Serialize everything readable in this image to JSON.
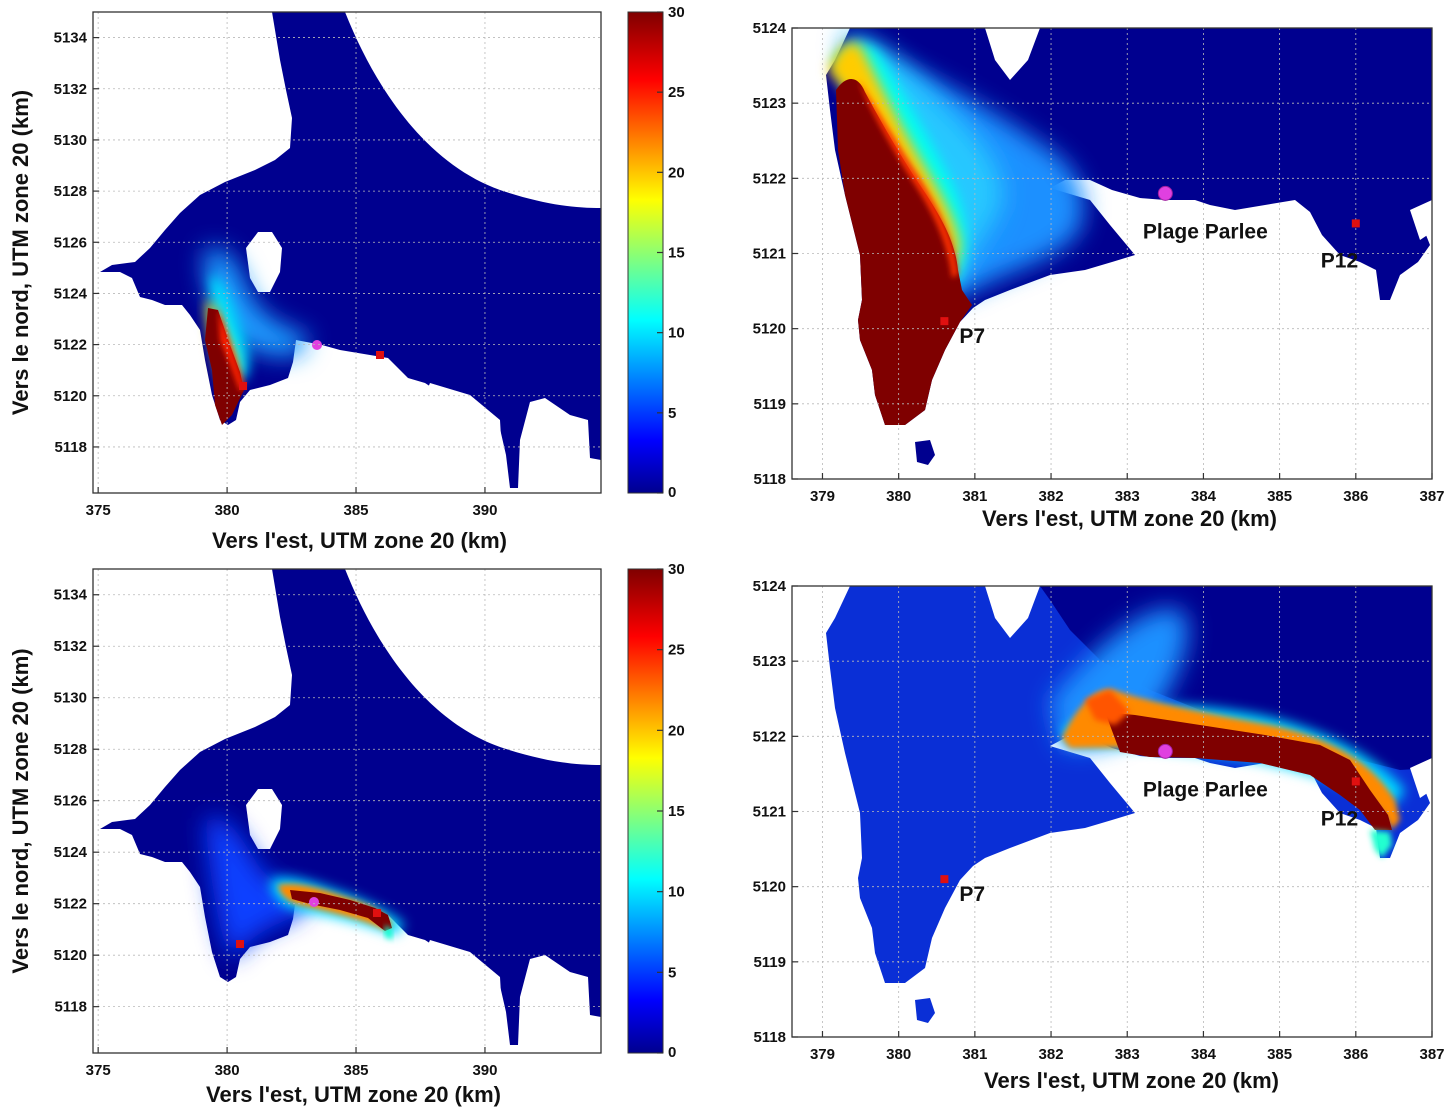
{
  "panels": [
    {
      "id": "top-left",
      "xlabel": "Vers l'est, UTM zone 20 (km)",
      "ylabel": "Vers le nord, UTM zone 20 (km)",
      "xticks": [
        "375",
        "380",
        "385",
        "390"
      ],
      "yticks": [
        "5118",
        "5120",
        "5122",
        "5124",
        "5126",
        "5128",
        "5130",
        "5132",
        "5134"
      ],
      "xlim": [
        374.8,
        394.5
      ],
      "ylim": [
        5116.2,
        5135.0
      ],
      "plume": "west"
    },
    {
      "id": "top-right",
      "xlabel": "Vers l'est, UTM zone 20 (km)",
      "xticks": [
        "379",
        "380",
        "381",
        "382",
        "383",
        "384",
        "385",
        "386",
        "387"
      ],
      "yticks": [
        "5118",
        "5119",
        "5120",
        "5121",
        "5122",
        "5123",
        "5124"
      ],
      "xlim": [
        378.6,
        387.0
      ],
      "ylim": [
        5118.0,
        5124.0
      ],
      "plume": "west",
      "places": [
        {
          "label": "Plage Parlee",
          "x": 383.5,
          "y": 5121.8,
          "kind": "marker-circle"
        },
        {
          "label": "P7",
          "x": 380.6,
          "y": 5120.1,
          "kind": "marker-square"
        },
        {
          "label": "P12",
          "x": 386.0,
          "y": 5121.4,
          "kind": "marker-square"
        }
      ]
    },
    {
      "id": "bottom-left",
      "xlabel": "Vers l'est, UTM zone 20 (km)",
      "ylabel": "Vers le nord, UTM zone 20 (km)",
      "xticks": [
        "375",
        "380",
        "385",
        "390"
      ],
      "yticks": [
        "5118",
        "5120",
        "5122",
        "5124",
        "5126",
        "5128",
        "5130",
        "5132",
        "5134"
      ],
      "xlim": [
        374.8,
        394.5
      ],
      "ylim": [
        5116.2,
        5135.0
      ],
      "plume": "east"
    },
    {
      "id": "bottom-right",
      "xlabel": "Vers l'est, UTM zone 20 (km)",
      "xticks": [
        "379",
        "380",
        "381",
        "382",
        "383",
        "384",
        "385",
        "386",
        "387"
      ],
      "yticks": [
        "5118",
        "5119",
        "5120",
        "5121",
        "5122",
        "5123",
        "5124"
      ],
      "xlim": [
        378.6,
        387.0
      ],
      "ylim": [
        5118.0,
        5124.0
      ],
      "plume": "east",
      "places": [
        {
          "label": "Plage Parlee",
          "x": 383.5,
          "y": 5121.8,
          "kind": "marker-circle"
        },
        {
          "label": "P7",
          "x": 380.6,
          "y": 5120.1,
          "kind": "marker-square"
        },
        {
          "label": "P12",
          "x": 386.0,
          "y": 5121.4,
          "kind": "marker-square"
        }
      ]
    }
  ],
  "colorbar": {
    "ticks": [
      "0",
      "5",
      "10",
      "15",
      "20",
      "25",
      "30"
    ],
    "range": [
      0,
      30
    ],
    "colormap": "jet"
  },
  "colors": {
    "water_deep": "#00008f",
    "water_mid": "#0a2fd6",
    "land": "#ffffff",
    "plume_high": "#7f0000",
    "marker_square": "#e01010",
    "marker_circle": "#e040e0"
  }
}
